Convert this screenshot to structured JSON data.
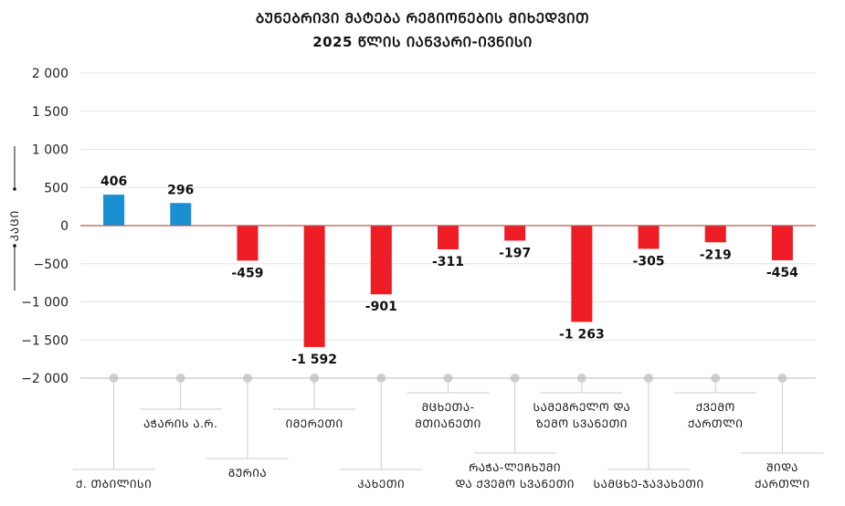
{
  "title": "ᲑᲣᲜᲔᲑᲠᲘᲕᲘ ᲛᲐᲢᲔᲑᲐ ᲠᲔᲒᲘᲝᲜᲔᲑᲘᲡ ᲛᲘᲮᲔᲓᲕᲘᲗ",
  "subtitle": "2025 ᲬᲚᲘᲡ ᲘᲐᲜᲕᲐᲠᲘ-ᲘᲕᲜᲘᲡᲘ",
  "chart_data": {
    "type": "bar",
    "title": "ᲑᲣᲜᲔᲑᲠᲘᲕᲘ ᲛᲐᲢᲔᲑᲐ ᲠᲔᲒᲘᲝᲜᲔᲑᲘᲡ ᲛᲘᲮᲔᲓᲕᲘᲗ",
    "subtitle": "2025 ᲬᲚᲘᲡ ᲘᲐᲜᲕᲐᲠᲘ-ᲘᲕᲜᲘᲡᲘ",
    "ylabel": "ᲙᲐᲪᲘ",
    "ylim": [
      -2000,
      2000
    ],
    "yticks": [
      2000,
      1500,
      1000,
      500,
      0,
      -500,
      -1000,
      -1500,
      -2000
    ],
    "ytick_labels": [
      "2 000",
      "1 500",
      "1 000",
      "500",
      "0",
      "−500",
      "−1 000",
      "−1 500",
      "−2 000"
    ],
    "categories": [
      [
        "Ქ. ᲗᲑᲘᲚᲘᲡᲘ"
      ],
      [
        "ᲐᲭᲐᲠᲘᲡ Ა.Რ."
      ],
      [
        "ᲒᲣᲠᲘᲐ"
      ],
      [
        "ᲘᲛᲔᲠᲔᲗᲘ"
      ],
      [
        "ᲙᲐᲮᲔᲗᲘ"
      ],
      [
        "ᲛᲪᲮᲔᲗᲐ-",
        "ᲛᲗᲘᲐᲜᲔᲗᲘ"
      ],
      [
        "ᲠᲐᲭᲐ-ᲚᲔᲩᲮᲣᲛᲘ",
        "ᲓᲐ ᲥᲕᲔᲛᲝ ᲡᲕᲐᲜᲔᲗᲘ"
      ],
      [
        "ᲡᲐᲛᲔᲒᲠᲔᲚᲝ ᲓᲐ",
        "ᲖᲔᲛᲝ ᲡᲕᲐᲜᲔᲗᲘ"
      ],
      [
        "ᲡᲐᲛᲪᲮᲔ-ᲯᲐᲕᲐᲮᲔᲗᲘ"
      ],
      [
        "ᲥᲕᲔᲛᲝ",
        "ᲥᲐᲠᲗᲚᲘ"
      ],
      [
        "ᲨᲘᲓᲐ",
        "ᲥᲐᲠᲗᲚᲘ"
      ]
    ],
    "values": [
      406,
      296,
      -459,
      -1592,
      -901,
      -311,
      -197,
      -1263,
      -305,
      -219,
      -454
    ],
    "value_labels": [
      "406",
      "296",
      "-459",
      "-1 592",
      "-901",
      "-311",
      "-197",
      "-1 263",
      "-305",
      "-219",
      "-454"
    ],
    "colors": {
      "positive": "#1a8fd1",
      "negative": "#ee1c25",
      "zero_line": "#b15c5c",
      "grid": "#e3e3e3",
      "leader": "#cccccc"
    },
    "grid": true,
    "legend": "none"
  }
}
